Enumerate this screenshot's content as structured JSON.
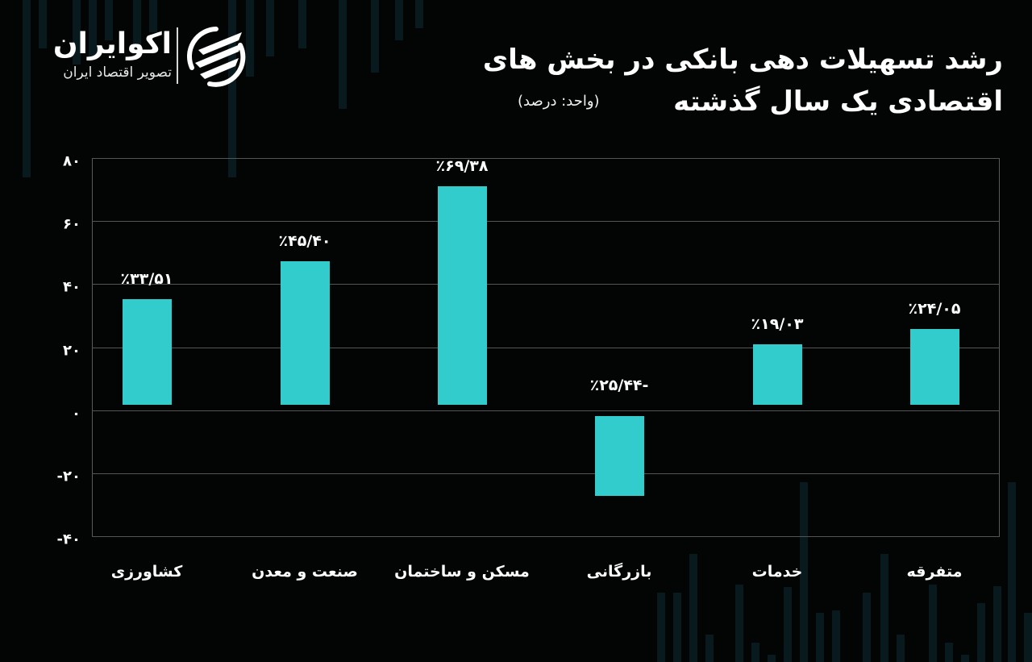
{
  "logo": {
    "name": "اکوایران",
    "tagline": "تصویر اقتصاد ایران",
    "icon": "ecoiran-stripes-logo-icon"
  },
  "header": {
    "title_line1": "رشد تسهیلات دهی بانکی در بخش های",
    "title_line2": "اقتصادی یک سال گذشته",
    "unit": "(واحد: درصد)"
  },
  "colors": {
    "background": "#030404",
    "bar": "#33cccc",
    "grid": "#555555",
    "text": "#ffffff",
    "decorative_bars": "#0a1e24"
  },
  "chart_data": {
    "type": "bar",
    "title": "رشد تسهیلات دهی بانکی در بخش های اقتصادی یک سال گذشته",
    "subtitle": "(واحد: درصد)",
    "xlabel": "",
    "ylabel": "درصد",
    "categories": [
      "کشاورزی",
      "صنعت و معدن",
      "مسکن و ساختمان",
      "بازرگانی",
      "خدمات",
      "متفرقه"
    ],
    "values": [
      33.51,
      45.4,
      69.38,
      -25.44,
      19.03,
      24.05
    ],
    "data_labels": [
      "٪۳۳/۵۱",
      "٪۴۵/۴۰",
      "٪۶۹/۳۸",
      "٪۲۵/۴۴-",
      "٪۱۹/۰۳",
      "٪۲۴/۰۵"
    ],
    "ylim": [
      -40,
      80
    ],
    "yticks": [
      80,
      60,
      40,
      20,
      0,
      -20,
      -40
    ],
    "ytick_labels": [
      "۸۰",
      "۶۰",
      "۴۰",
      "۲۰",
      "۰",
      "-۲۰",
      "-۴۰"
    ],
    "grid": true,
    "legend": null
  }
}
